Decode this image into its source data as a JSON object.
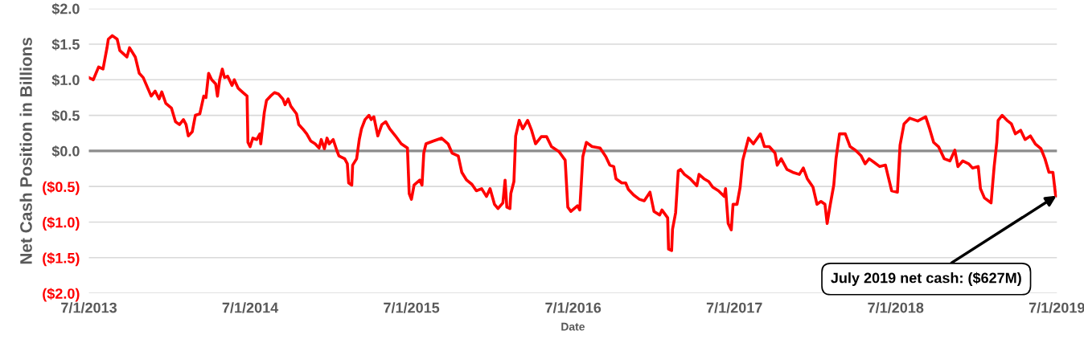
{
  "chart_data": {
    "type": "line",
    "xlabel": "Date",
    "ylabel": "Net Cash Position in Billions",
    "xlim": [
      "2013-07-01",
      "2019-07-01"
    ],
    "xticks": [
      {
        "value": "2013-07-01",
        "label": "7/1/2013"
      },
      {
        "value": "2014-07-01",
        "label": "7/1/2014"
      },
      {
        "value": "2015-07-01",
        "label": "7/1/2015"
      },
      {
        "value": "2016-07-01",
        "label": "7/1/2016"
      },
      {
        "value": "2017-07-01",
        "label": "7/1/2017"
      },
      {
        "value": "2018-07-01",
        "label": "7/1/2018"
      },
      {
        "value": "2019-07-01",
        "label": "7/1/2019"
      }
    ],
    "ylim": [
      -2,
      2
    ],
    "yticks": [
      {
        "value": -2,
        "label": "($2.0)"
      },
      {
        "value": -1.5,
        "label": "($1.5)"
      },
      {
        "value": -1,
        "label": "($1.0)"
      },
      {
        "value": -0.5,
        "label": "($0.5)"
      },
      {
        "value": 0,
        "label": "$0.0"
      },
      {
        "value": 0.5,
        "label": "$0.5"
      },
      {
        "value": 1,
        "label": "$1.0"
      },
      {
        "value": 1.5,
        "label": "$1.5"
      },
      {
        "value": 2,
        "label": "$2.0"
      }
    ],
    "grid": "y",
    "marker": "none",
    "line_style": "solid",
    "ref_lines": [
      {
        "axis": "y",
        "value": 0,
        "color": "#8c8c8c"
      }
    ],
    "annotations": [
      {
        "text": "July 2019 net cash: ($627M)",
        "x": "2019-06-30",
        "y": -0.63
      }
    ],
    "series": [
      {
        "color": "#ff0000",
        "x": [
          "2013-07-01",
          "2013-07-11",
          "2013-07-23",
          "2013-08-02",
          "2013-08-11",
          "2013-08-14",
          "2013-08-23",
          "2013-09-03",
          "2013-09-09",
          "2013-09-25",
          "2013-10-01",
          "2013-10-14",
          "2013-10-23",
          "2013-11-01",
          "2013-11-10",
          "2013-11-19",
          "2013-11-28",
          "2013-12-07",
          "2013-12-13",
          "2013-12-22",
          "2014-01-04",
          "2014-01-13",
          "2014-01-22",
          "2014-01-31",
          "2014-02-06",
          "2014-02-11",
          "2014-02-20",
          "2014-02-27",
          "2014-03-09",
          "2014-03-18",
          "2014-03-23",
          "2014-03-29",
          "2014-04-05",
          "2014-04-14",
          "2014-04-18",
          "2014-04-23",
          "2014-04-29",
          "2014-05-04",
          "2014-05-11",
          "2014-05-21",
          "2014-05-26",
          "2014-06-04",
          "2014-06-13",
          "2014-06-24",
          "2014-06-26",
          "2014-07-01",
          "2014-07-07",
          "2014-07-16",
          "2014-07-23",
          "2014-07-25",
          "2014-08-02",
          "2014-08-07",
          "2014-08-16",
          "2014-08-25",
          "2014-09-03",
          "2014-09-13",
          "2014-09-18",
          "2014-09-25",
          "2014-10-01",
          "2014-10-14",
          "2014-10-19",
          "2014-10-28",
          "2014-11-06",
          "2014-11-15",
          "2014-11-25",
          "2014-12-04",
          "2014-12-09",
          "2014-12-16",
          "2014-12-22",
          "2014-12-27",
          "2015-01-05",
          "2015-01-13",
          "2015-01-18",
          "2015-01-31",
          "2015-02-06",
          "2015-02-09",
          "2015-02-16",
          "2015-02-18",
          "2015-02-27",
          "2015-03-05",
          "2015-03-10",
          "2015-03-18",
          "2015-03-27",
          "2015-04-01",
          "2015-04-07",
          "2015-04-16",
          "2015-04-25",
          "2015-05-04",
          "2015-05-13",
          "2015-05-26",
          "2015-06-08",
          "2015-06-22",
          "2015-06-26",
          "2015-07-01",
          "2015-07-07",
          "2015-07-20",
          "2015-07-25",
          "2015-07-29",
          "2015-08-03",
          "2015-08-20",
          "2015-09-07",
          "2015-09-22",
          "2015-10-01",
          "2015-10-15",
          "2015-10-23",
          "2015-11-03",
          "2015-11-15",
          "2015-11-25",
          "2015-12-07",
          "2015-12-18",
          "2015-12-26",
          "2016-01-05",
          "2016-01-13",
          "2016-01-24",
          "2016-01-29",
          "2016-02-02",
          "2016-02-09",
          "2016-02-11",
          "2016-02-18",
          "2016-02-22",
          "2016-03-01",
          "2016-03-09",
          "2016-03-20",
          "2016-03-29",
          "2016-04-07",
          "2016-04-20",
          "2016-05-02",
          "2016-05-13",
          "2016-05-30",
          "2016-06-13",
          "2016-06-19",
          "2016-06-26",
          "2016-07-11",
          "2016-07-16",
          "2016-07-23",
          "2016-07-31",
          "2016-08-13",
          "2016-08-31",
          "2016-09-13",
          "2016-09-22",
          "2016-10-01",
          "2016-10-06",
          "2016-10-19",
          "2016-10-28",
          "2016-11-03",
          "2016-11-15",
          "2016-11-28",
          "2016-12-09",
          "2016-12-22",
          "2016-12-31",
          "2017-01-13",
          "2017-01-18",
          "2017-01-31",
          "2017-02-02",
          "2017-02-09",
          "2017-02-11",
          "2017-02-18",
          "2017-02-24",
          "2017-03-01",
          "2017-03-10",
          "2017-03-23",
          "2017-04-07",
          "2017-04-12",
          "2017-04-23",
          "2017-05-04",
          "2017-05-13",
          "2017-05-26",
          "2017-06-08",
          "2017-06-11",
          "2017-06-17",
          "2017-06-24",
          "2017-06-28",
          "2017-07-07",
          "2017-07-14",
          "2017-07-20",
          "2017-08-02",
          "2017-08-13",
          "2017-08-29",
          "2017-09-07",
          "2017-09-18",
          "2017-10-01",
          "2017-10-06",
          "2017-10-15",
          "2017-10-28",
          "2017-11-10",
          "2017-11-25",
          "2017-12-04",
          "2017-12-13",
          "2017-12-26",
          "2018-01-04",
          "2018-01-13",
          "2018-01-22",
          "2018-01-27",
          "2018-02-02",
          "2018-02-11",
          "2018-02-16",
          "2018-02-24",
          "2018-03-09",
          "2018-03-20",
          "2018-04-01",
          "2018-04-14",
          "2018-04-23",
          "2018-05-02",
          "2018-05-13",
          "2018-05-26",
          "2018-06-08",
          "2018-06-13",
          "2018-06-22",
          "2018-07-05",
          "2018-07-11",
          "2018-07-20",
          "2018-08-02",
          "2018-08-20",
          "2018-09-07",
          "2018-09-16",
          "2018-09-25",
          "2018-10-06",
          "2018-10-19",
          "2018-11-01",
          "2018-11-12",
          "2018-11-19",
          "2018-11-30",
          "2018-12-13",
          "2018-12-22",
          "2019-01-04",
          "2019-01-09",
          "2019-01-18",
          "2019-02-02",
          "2019-02-09",
          "2019-02-15",
          "2019-02-18",
          "2019-02-27",
          "2019-03-10",
          "2019-03-20",
          "2019-03-29",
          "2019-04-10",
          "2019-04-20",
          "2019-05-02",
          "2019-05-13",
          "2019-05-26",
          "2019-06-04",
          "2019-06-13",
          "2019-06-22",
          "2019-06-28",
          "2019-06-30"
        ],
        "values": [
          1.03,
          1.0,
          1.18,
          1.15,
          1.45,
          1.57,
          1.62,
          1.57,
          1.41,
          1.32,
          1.45,
          1.32,
          1.09,
          1.03,
          0.9,
          0.77,
          0.84,
          0.73,
          0.83,
          0.67,
          0.6,
          0.41,
          0.37,
          0.44,
          0.37,
          0.21,
          0.27,
          0.5,
          0.52,
          0.77,
          0.75,
          1.09,
          1.0,
          0.94,
          0.77,
          1.0,
          1.15,
          1.03,
          1.05,
          0.92,
          1.0,
          0.88,
          0.83,
          0.77,
          0.12,
          0.06,
          0.18,
          0.16,
          0.24,
          0.1,
          0.54,
          0.71,
          0.77,
          0.82,
          0.8,
          0.73,
          0.65,
          0.73,
          0.63,
          0.52,
          0.37,
          0.31,
          0.24,
          0.14,
          0.1,
          0.04,
          0.16,
          0.03,
          0.18,
          0.1,
          0.16,
          0.01,
          -0.07,
          -0.11,
          -0.18,
          -0.45,
          -0.48,
          -0.2,
          -0.11,
          0.16,
          0.31,
          0.44,
          0.5,
          0.44,
          0.48,
          0.21,
          0.37,
          0.41,
          0.31,
          0.21,
          0.1,
          0.04,
          -0.6,
          -0.68,
          -0.48,
          -0.41,
          -0.48,
          -0.03,
          0.1,
          0.14,
          0.18,
          0.1,
          -0.03,
          -0.07,
          -0.3,
          -0.41,
          -0.47,
          -0.56,
          -0.53,
          -0.64,
          -0.53,
          -0.75,
          -0.81,
          -0.73,
          -0.41,
          -0.79,
          -0.81,
          -0.6,
          -0.43,
          0.21,
          0.43,
          0.31,
          0.43,
          0.29,
          0.1,
          0.2,
          0.2,
          0.06,
          -0.01,
          -0.13,
          -0.79,
          -0.85,
          -0.77,
          -0.83,
          -0.08,
          0.12,
          0.06,
          0.04,
          -0.08,
          -0.2,
          -0.22,
          -0.39,
          -0.45,
          -0.45,
          -0.54,
          -0.62,
          -0.68,
          -0.7,
          -0.58,
          -0.85,
          -0.9,
          -0.83,
          -0.94,
          -1.38,
          -1.4,
          -1.1,
          -0.87,
          -0.28,
          -0.26,
          -0.33,
          -0.39,
          -0.49,
          -0.33,
          -0.39,
          -0.43,
          -0.51,
          -0.56,
          -0.64,
          -0.53,
          -1.02,
          -1.11,
          -0.75,
          -0.75,
          -0.51,
          -0.13,
          0.18,
          0.1,
          0.24,
          0.06,
          0.06,
          -0.03,
          -0.2,
          -0.11,
          -0.26,
          -0.3,
          -0.33,
          -0.24,
          -0.39,
          -0.51,
          -0.75,
          -0.71,
          -0.75,
          -1.02,
          -0.79,
          -0.48,
          -0.11,
          0.24,
          0.24,
          0.06,
          0.01,
          -0.07,
          -0.18,
          -0.11,
          -0.16,
          -0.22,
          -0.2,
          -0.33,
          -0.56,
          -0.58,
          0.08,
          0.38,
          0.46,
          0.42,
          0.48,
          0.31,
          0.12,
          0.06,
          -0.11,
          -0.14,
          0.01,
          -0.22,
          -0.14,
          -0.18,
          -0.24,
          -0.22,
          -0.53,
          -0.66,
          -0.73,
          -0.22,
          0.12,
          0.43,
          0.5,
          0.43,
          0.38,
          0.24,
          0.29,
          0.16,
          0.21,
          0.1,
          0.03,
          -0.11,
          -0.3,
          -0.3,
          -0.62,
          -0.63
        ]
      }
    ]
  }
}
